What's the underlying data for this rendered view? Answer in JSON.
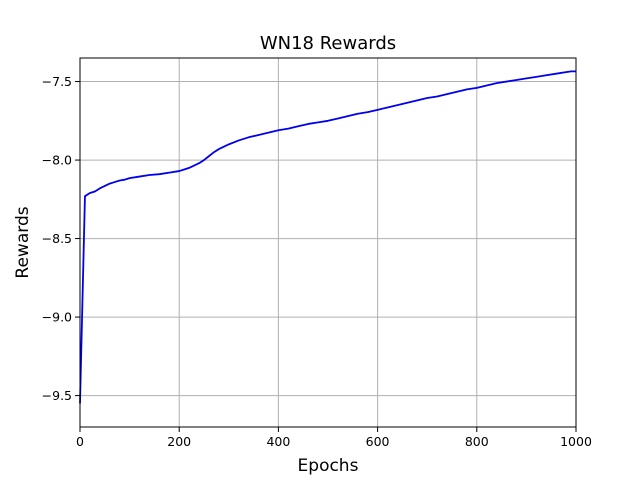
{
  "chart_data": {
    "type": "line",
    "title": "WN18 Rewards",
    "xlabel": "Epochs",
    "ylabel": "Rewards",
    "xlim": [
      0,
      1000
    ],
    "ylim": [
      -9.7,
      -7.35
    ],
    "xticks": [
      0,
      200,
      400,
      600,
      800,
      1000
    ],
    "yticks": [
      -9.5,
      -9.0,
      -8.5,
      -8.0,
      -7.5
    ],
    "xtick_labels": [
      "0",
      "200",
      "400",
      "600",
      "800",
      "1000"
    ],
    "ytick_labels": [
      "−9.5",
      "−9.0",
      "−8.5",
      "−8.0",
      "−7.5"
    ],
    "grid": true,
    "series": [
      {
        "color": "#0000ee",
        "x": [
          0,
          10,
          20,
          30,
          40,
          50,
          60,
          70,
          80,
          90,
          100,
          120,
          140,
          160,
          180,
          200,
          210,
          220,
          230,
          240,
          250,
          260,
          270,
          280,
          300,
          320,
          340,
          360,
          380,
          400,
          420,
          440,
          460,
          480,
          500,
          520,
          540,
          560,
          580,
          600,
          620,
          640,
          660,
          680,
          700,
          720,
          740,
          760,
          780,
          800,
          820,
          840,
          860,
          880,
          900,
          920,
          940,
          960,
          980,
          990,
          1000
        ],
        "y": [
          -9.55,
          -8.23,
          -8.21,
          -8.2,
          -8.18,
          -8.165,
          -8.15,
          -8.14,
          -8.13,
          -8.125,
          -8.115,
          -8.105,
          -8.095,
          -8.09,
          -8.08,
          -8.07,
          -8.06,
          -8.05,
          -8.035,
          -8.02,
          -8.0,
          -7.975,
          -7.95,
          -7.93,
          -7.9,
          -7.875,
          -7.855,
          -7.84,
          -7.825,
          -7.81,
          -7.8,
          -7.785,
          -7.77,
          -7.76,
          -7.75,
          -7.735,
          -7.72,
          -7.705,
          -7.695,
          -7.68,
          -7.665,
          -7.65,
          -7.635,
          -7.62,
          -7.605,
          -7.595,
          -7.58,
          -7.565,
          -7.55,
          -7.54,
          -7.525,
          -7.51,
          -7.5,
          -7.49,
          -7.48,
          -7.47,
          -7.46,
          -7.45,
          -7.44,
          -7.435,
          -7.435
        ]
      }
    ]
  }
}
